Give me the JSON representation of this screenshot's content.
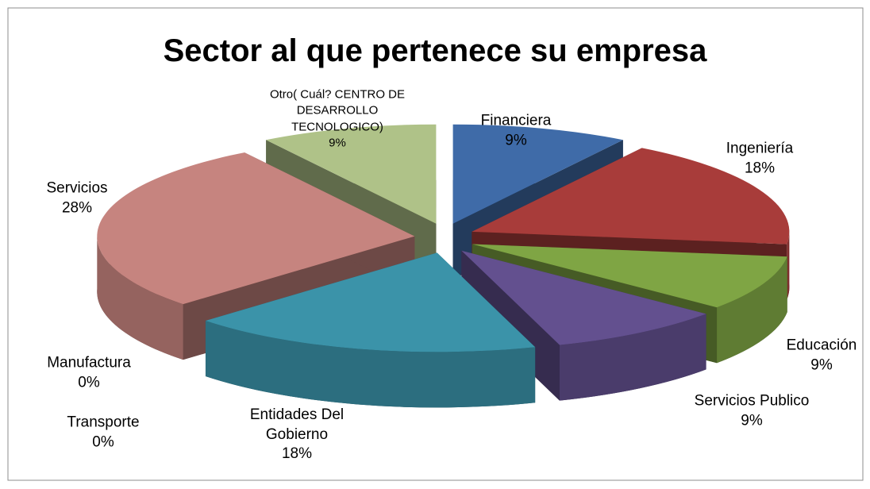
{
  "chart_data": {
    "type": "pie3d",
    "title": "Sector al que pertenece su empresa",
    "categories": [
      "Financiera",
      "Ingeniería",
      "Educación",
      "Servicios Publico",
      "Entidades Del Gobierno",
      "Transporte",
      "Manufactura",
      "Servicios",
      "Otro(  Cuál? CENTRO DE DESARROLLO TECNOLOGICO)"
    ],
    "values": [
      9,
      18,
      9,
      9,
      18,
      0,
      0,
      28,
      9
    ],
    "value_labels": [
      "9%",
      "18%",
      "9%",
      "9%",
      "18%",
      "0%",
      "0%",
      "28%",
      "9%"
    ],
    "colors": [
      "#3f6ba8",
      "#a83c3a",
      "#7fa544",
      "#63508f",
      "#3b93a9",
      "#7a8fb0",
      "#4b5b74",
      "#c6847f",
      "#afc288"
    ]
  }
}
